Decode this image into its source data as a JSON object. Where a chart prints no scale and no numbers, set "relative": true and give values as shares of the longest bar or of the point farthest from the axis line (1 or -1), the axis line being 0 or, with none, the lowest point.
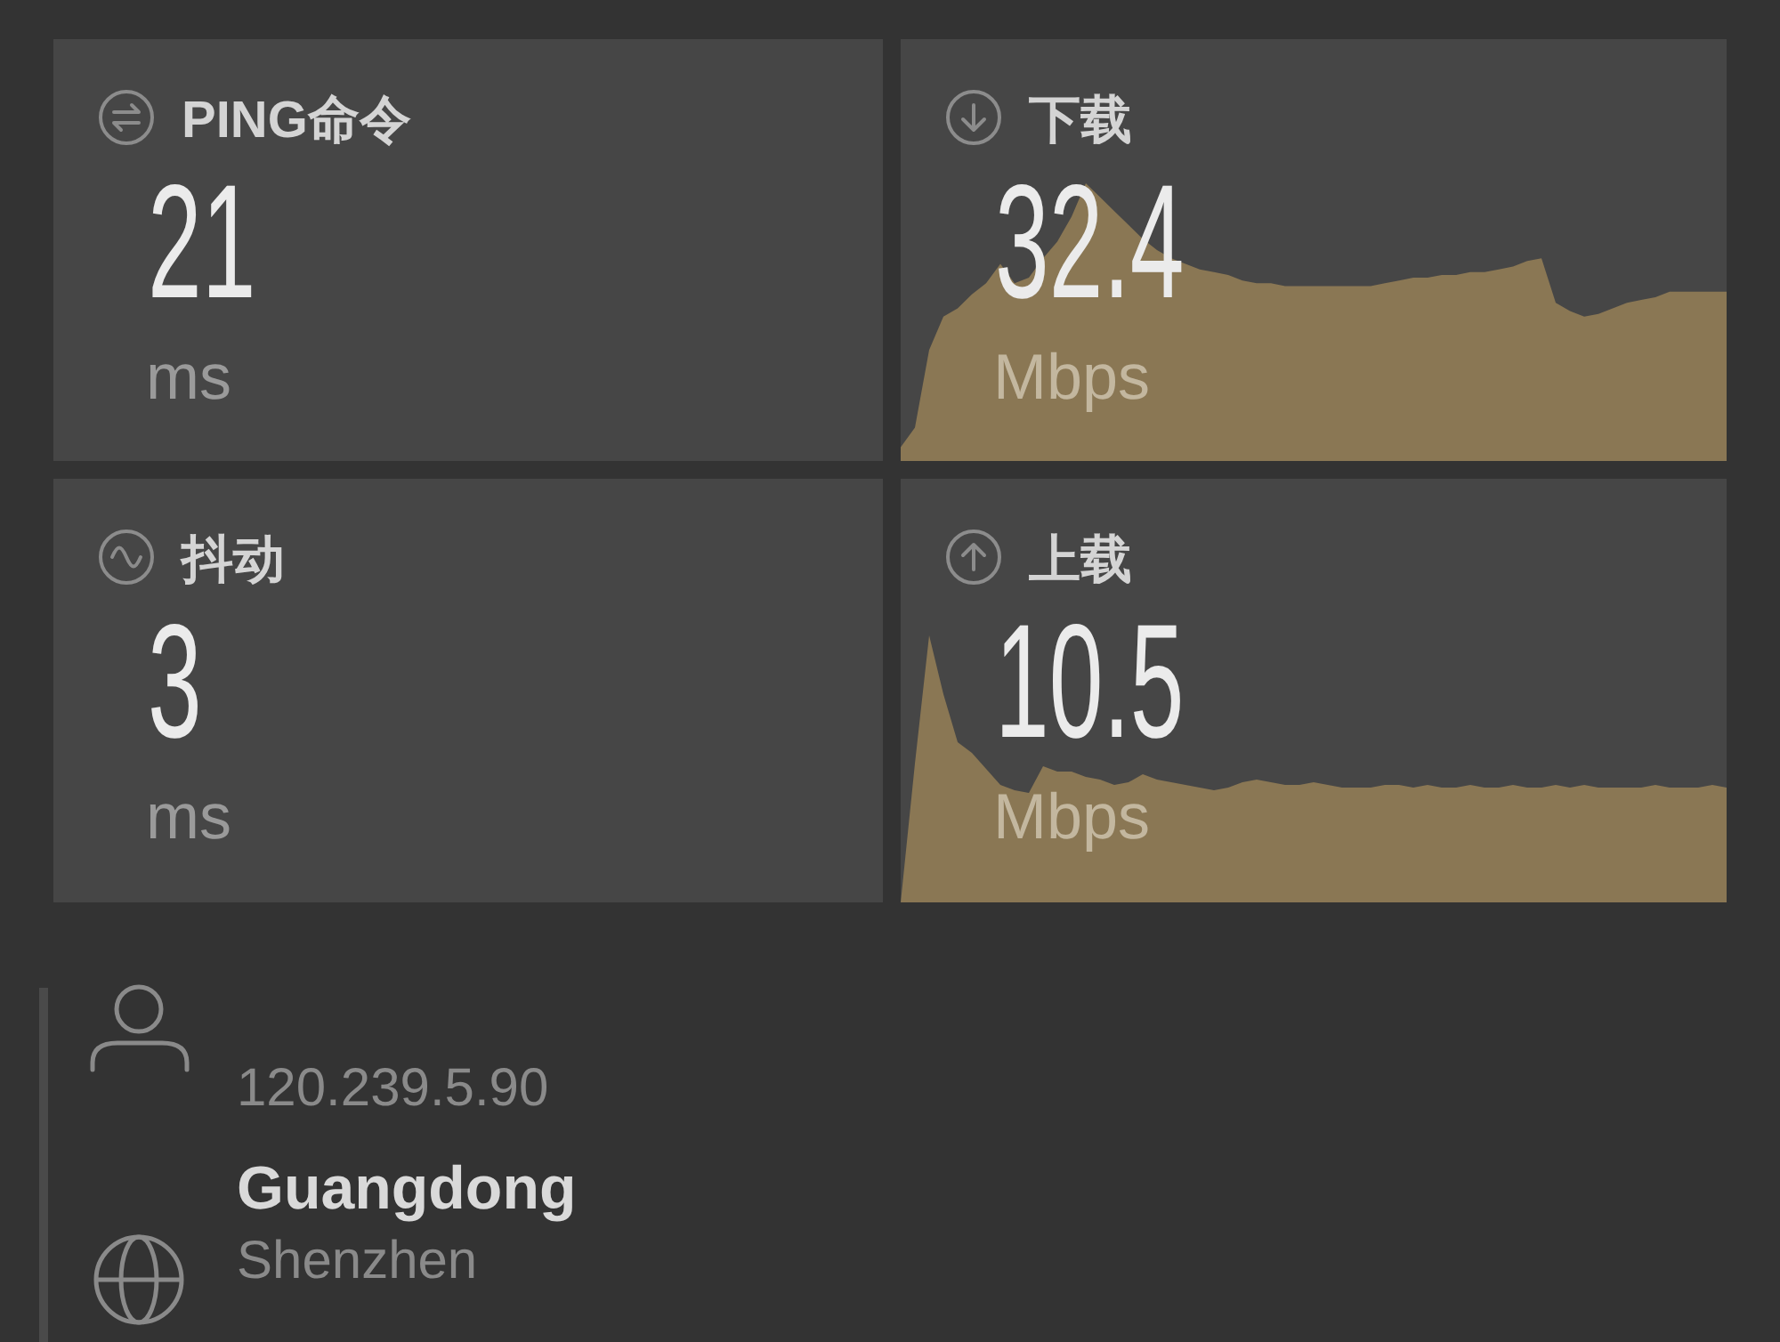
{
  "chart_data": [
    {
      "type": "other",
      "title": "PING命令",
      "annotations": [
        "21",
        "ms"
      ]
    },
    {
      "type": "area",
      "title": "下载",
      "annotations": [
        "32.4",
        "Mbps"
      ],
      "relative": true,
      "color": "#8a7754",
      "categories": [
        null,
        null,
        null,
        null,
        null,
        null,
        null,
        null,
        null,
        null,
        null,
        null,
        null,
        null,
        null,
        null,
        null,
        null,
        null,
        null,
        null,
        null,
        null,
        null,
        null,
        null,
        null,
        null,
        null,
        null,
        null,
        null,
        null,
        null,
        null,
        null,
        null,
        null,
        null,
        null,
        null,
        null,
        null,
        null,
        null,
        null,
        null,
        null,
        null,
        null,
        null,
        null,
        null,
        null,
        null,
        null,
        null,
        null,
        null
      ],
      "values": [
        0.05,
        0.12,
        0.4,
        0.52,
        0.55,
        0.6,
        0.64,
        0.71,
        0.64,
        0.66,
        0.73,
        0.79,
        0.88,
        1,
        0.95,
        0.9,
        0.85,
        0.8,
        0.76,
        0.73,
        0.71,
        0.69,
        0.68,
        0.67,
        0.65,
        0.64,
        0.64,
        0.63,
        0.63,
        0.63,
        0.63,
        0.63,
        0.63,
        0.63,
        0.64,
        0.65,
        0.66,
        0.66,
        0.67,
        0.67,
        0.68,
        0.68,
        0.69,
        0.7,
        0.72,
        0.73,
        0.57,
        0.54,
        0.52,
        0.53,
        0.55,
        0.57,
        0.58,
        0.59,
        0.61,
        0.61,
        0.61,
        0.61,
        0.61
      ]
    },
    {
      "type": "other",
      "title": "抖动",
      "annotations": [
        "3",
        "ms"
      ]
    },
    {
      "type": "area",
      "title": "上载",
      "annotations": [
        "10.5",
        "Mbps"
      ],
      "relative": true,
      "color": "#8a7754",
      "categories": [
        null,
        null,
        null,
        null,
        null,
        null,
        null,
        null,
        null,
        null,
        null,
        null,
        null,
        null,
        null,
        null,
        null,
        null,
        null,
        null,
        null,
        null,
        null,
        null,
        null,
        null,
        null,
        null,
        null,
        null,
        null,
        null,
        null,
        null,
        null,
        null,
        null,
        null,
        null,
        null,
        null,
        null,
        null,
        null,
        null,
        null,
        null,
        null,
        null,
        null,
        null,
        null,
        null,
        null,
        null,
        null,
        null,
        null,
        null
      ],
      "values": [
        0,
        0.52,
        1,
        0.78,
        0.6,
        0.56,
        0.5,
        0.44,
        0.42,
        0.41,
        0.51,
        0.49,
        0.49,
        0.47,
        0.46,
        0.44,
        0.45,
        0.48,
        0.46,
        0.45,
        0.44,
        0.43,
        0.42,
        0.43,
        0.45,
        0.46,
        0.45,
        0.44,
        0.44,
        0.45,
        0.44,
        0.43,
        0.43,
        0.43,
        0.44,
        0.44,
        0.43,
        0.44,
        0.43,
        0.43,
        0.44,
        0.43,
        0.43,
        0.44,
        0.43,
        0.43,
        0.44,
        0.43,
        0.44,
        0.43,
        0.43,
        0.43,
        0.43,
        0.44,
        0.43,
        0.43,
        0.43,
        0.44,
        0.43
      ]
    },
    {
      "type": "other",
      "annotations": [
        "120.239.5.90",
        "Guangdong",
        "Shenzhen"
      ]
    }
  ]
}
